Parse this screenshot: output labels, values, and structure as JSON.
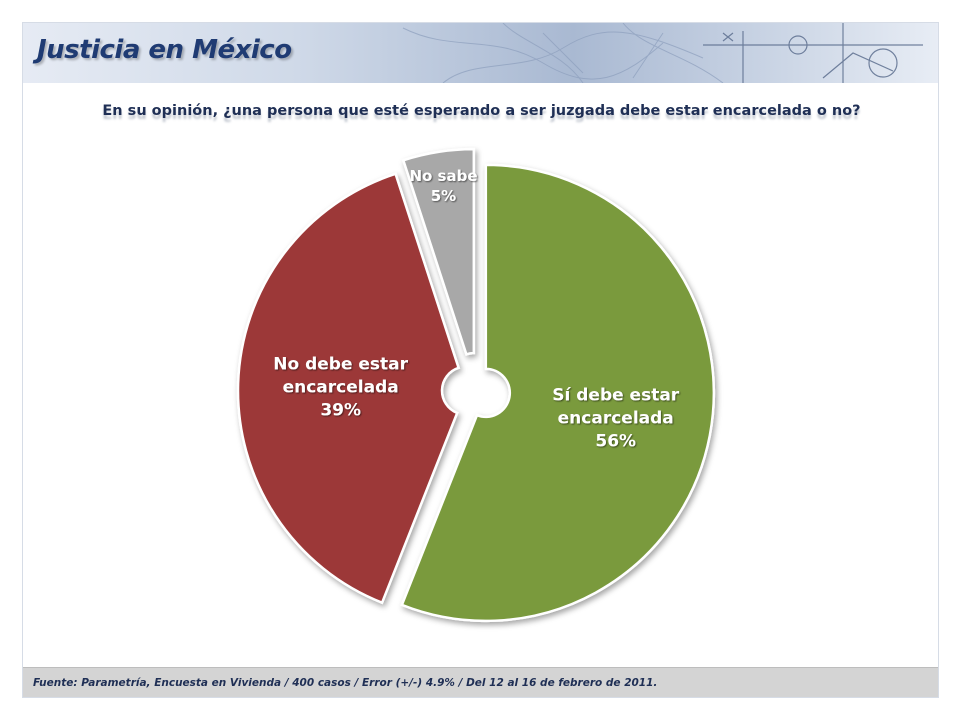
{
  "header": {
    "title": "Justicia en México"
  },
  "question": "En su opinión, ¿una persona que esté esperando a ser juzgada debe estar encarcelada o no?",
  "chart_data": {
    "type": "pie",
    "variant": "doughnut",
    "slices": [
      {
        "label_lines": [
          "Sí debe estar",
          "encarcelada"
        ],
        "value": 56,
        "value_label": "56%",
        "color": "#7a9a3e"
      },
      {
        "label_lines": [
          "No debe estar",
          "encarcelada"
        ],
        "value": 39,
        "value_label": "39%",
        "color": "#9c3838"
      },
      {
        "label_lines": [
          "No sabe"
        ],
        "value": 5,
        "value_label": "5%",
        "color": "#a8a8a8"
      }
    ]
  },
  "footer": {
    "source": "Fuente: Parametría, Encuesta en Vivienda / 400 casos / Error (+/-) 4.9% / Del 12 al 16 de febrero de 2011."
  }
}
